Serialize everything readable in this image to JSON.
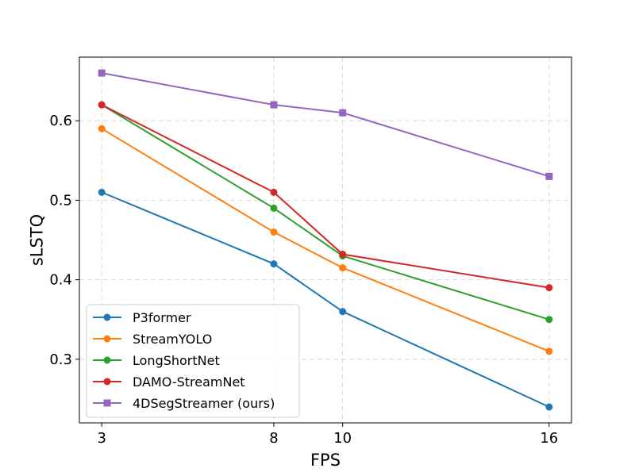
{
  "chart_data": {
    "type": "line",
    "title": "",
    "xlabel": "FPS",
    "ylabel": "sLSTQ",
    "x": [
      3,
      8,
      10,
      16
    ],
    "x_ticks": [
      3,
      8,
      10,
      16
    ],
    "x_tick_labels": [
      "3",
      "8",
      "10",
      "16"
    ],
    "xlim": [
      2.35,
      16.65
    ],
    "ylim": [
      0.22,
      0.68
    ],
    "y_ticks": [
      0.3,
      0.4,
      0.5,
      0.6
    ],
    "y_tick_labels": [
      "0.3",
      "0.4",
      "0.5",
      "0.6"
    ],
    "grid": true,
    "legend_position": "lower-left",
    "series": [
      {
        "name": "P3former",
        "color": "#1f77b4",
        "marker": "circle",
        "values": [
          0.51,
          0.42,
          0.36,
          0.24
        ]
      },
      {
        "name": "StreamYOLO",
        "color": "#ff7f0e",
        "marker": "circle",
        "values": [
          0.59,
          0.46,
          0.415,
          0.31
        ]
      },
      {
        "name": "LongShortNet",
        "color": "#2ca02c",
        "marker": "circle",
        "values": [
          0.62,
          0.49,
          0.43,
          0.35
        ]
      },
      {
        "name": "DAMO-StreamNet",
        "color": "#d62728",
        "marker": "circle",
        "values": [
          0.62,
          0.51,
          0.432,
          0.39
        ]
      },
      {
        "name": "4DSegStreamer (ours)",
        "color": "#9467bd",
        "marker": "square",
        "values": [
          0.66,
          0.62,
          0.61,
          0.53
        ]
      }
    ]
  }
}
